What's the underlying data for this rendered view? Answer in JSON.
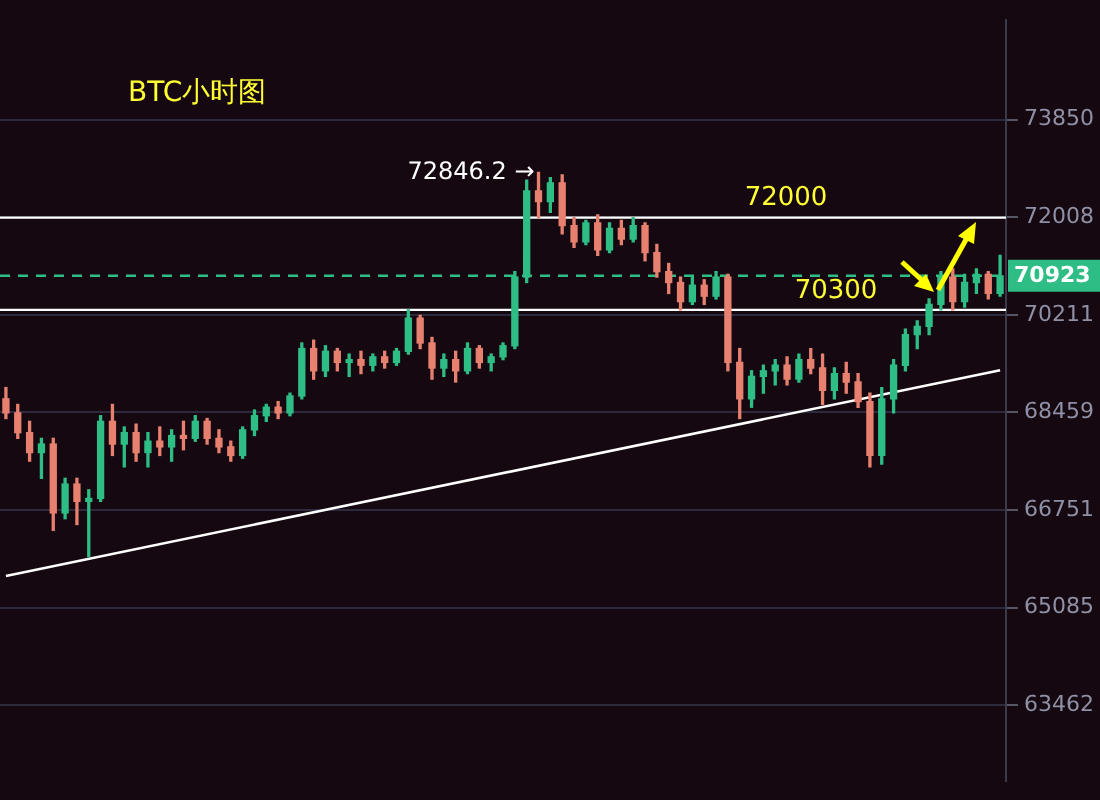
{
  "chart_data": {
    "type": "candlestick",
    "title": "BTC小时图",
    "categories": [
      null,
      null,
      null,
      null,
      null,
      null,
      null,
      null,
      null,
      null,
      null,
      null,
      null,
      null,
      null,
      null,
      null,
      null,
      null,
      null,
      null,
      null,
      null,
      null,
      null,
      null,
      null,
      null,
      null,
      null,
      null,
      null,
      null,
      null,
      null,
      null,
      null,
      null,
      null,
      null,
      null,
      null,
      null,
      null,
      null,
      null,
      null,
      null,
      null,
      null,
      null,
      null,
      null,
      null,
      null,
      null,
      null,
      null,
      null,
      null,
      null,
      null,
      null,
      null,
      null,
      null,
      null,
      null,
      null,
      null,
      null,
      null,
      null,
      null,
      null,
      null,
      null,
      null,
      null,
      null,
      null,
      null,
      null,
      null,
      null
    ],
    "ohlc": [
      [
        68700,
        68900,
        68350,
        68450
      ],
      [
        68450,
        68600,
        68000,
        68100
      ],
      [
        68100,
        68300,
        67600,
        67750
      ],
      [
        67750,
        68000,
        67300,
        67900
      ],
      [
        67900,
        68000,
        66400,
        66700
      ],
      [
        66700,
        67300,
        66600,
        67200
      ],
      [
        67200,
        67300,
        66500,
        66900
      ],
      [
        66900,
        67100,
        65950,
        66950
      ],
      [
        66950,
        68400,
        66900,
        68300
      ],
      [
        68300,
        68600,
        67700,
        67900
      ],
      [
        67900,
        68200,
        67500,
        68100
      ],
      [
        68100,
        68250,
        67600,
        67750
      ],
      [
        67750,
        68100,
        67500,
        67950
      ],
      [
        67950,
        68200,
        67700,
        67850
      ],
      [
        67850,
        68150,
        67600,
        68050
      ],
      [
        68050,
        68300,
        67800,
        68000
      ],
      [
        68000,
        68400,
        67950,
        68300
      ],
      [
        68300,
        68350,
        67900,
        68000
      ],
      [
        68000,
        68150,
        67750,
        67850
      ],
      [
        67850,
        67950,
        67600,
        67700
      ],
      [
        67700,
        68200,
        67650,
        68150
      ],
      [
        68150,
        68500,
        68050,
        68400
      ],
      [
        68400,
        68600,
        68300,
        68550
      ],
      [
        68550,
        68650,
        68350,
        68450
      ],
      [
        68450,
        68800,
        68400,
        68750
      ],
      [
        68750,
        69700,
        68700,
        69600
      ],
      [
        69600,
        69750,
        69050,
        69200
      ],
      [
        69200,
        69650,
        69100,
        69550
      ],
      [
        69550,
        69600,
        69200,
        69350
      ],
      [
        69350,
        69500,
        69100,
        69400
      ],
      [
        69400,
        69550,
        69150,
        69300
      ],
      [
        69300,
        69500,
        69200,
        69450
      ],
      [
        69450,
        69550,
        69250,
        69350
      ],
      [
        69350,
        69600,
        69300,
        69550
      ],
      [
        69550,
        70300,
        69500,
        70150
      ],
      [
        70150,
        70200,
        69600,
        69700
      ],
      [
        69700,
        69800,
        69050,
        69250
      ],
      [
        69250,
        69500,
        69100,
        69400
      ],
      [
        69400,
        69550,
        69000,
        69200
      ],
      [
        69200,
        69700,
        69150,
        69600
      ],
      [
        69600,
        69650,
        69250,
        69350
      ],
      [
        69350,
        69500,
        69200,
        69450
      ],
      [
        69450,
        69700,
        69400,
        69650
      ],
      [
        69650,
        71000,
        69600,
        70900
      ],
      [
        70900,
        72700,
        70800,
        72500
      ],
      [
        72500,
        72846.2,
        72000,
        72300
      ],
      [
        72300,
        72750,
        72100,
        72650
      ],
      [
        72650,
        72800,
        71700,
        71850
      ],
      [
        71850,
        72000,
        71450,
        71550
      ],
      [
        71550,
        71950,
        71500,
        71900
      ],
      [
        71900,
        72050,
        71300,
        71400
      ],
      [
        71400,
        71900,
        71350,
        71800
      ],
      [
        71800,
        71950,
        71500,
        71600
      ],
      [
        71600,
        72000,
        71550,
        71850
      ],
      [
        71850,
        71900,
        71200,
        71350
      ],
      [
        71350,
        71500,
        70900,
        71000
      ],
      [
        71000,
        71150,
        70600,
        70800
      ],
      [
        70800,
        70900,
        70300,
        70450
      ],
      [
        70450,
        70900,
        70400,
        70750
      ],
      [
        70750,
        70850,
        70400,
        70550
      ],
      [
        70550,
        71000,
        70500,
        70900
      ],
      [
        70900,
        70950,
        69200,
        69350
      ],
      [
        69350,
        69600,
        68350,
        68700
      ],
      [
        68700,
        69200,
        68550,
        69100
      ],
      [
        69100,
        69300,
        68800,
        69200
      ],
      [
        69200,
        69400,
        68950,
        69300
      ],
      [
        69300,
        69450,
        68950,
        69050
      ],
      [
        69050,
        69500,
        69000,
        69400
      ],
      [
        69400,
        69600,
        69150,
        69250
      ],
      [
        69250,
        69500,
        68600,
        68850
      ],
      [
        68850,
        69250,
        68700,
        69150
      ],
      [
        69150,
        69350,
        68800,
        69000
      ],
      [
        69000,
        69150,
        68550,
        68650
      ],
      [
        68650,
        68800,
        67500,
        67700
      ],
      [
        67700,
        68900,
        67550,
        68700
      ],
      [
        68700,
        69400,
        68450,
        69300
      ],
      [
        69300,
        69950,
        69200,
        69850
      ],
      [
        69850,
        70100,
        69600,
        70000
      ],
      [
        70000,
        70500,
        69850,
        70400
      ],
      [
        70400,
        71000,
        70300,
        70900
      ],
      [
        70900,
        71050,
        70300,
        70450
      ],
      [
        70450,
        70950,
        70350,
        70800
      ],
      [
        70800,
        71050,
        70600,
        70950
      ],
      [
        70950,
        71000,
        70500,
        70600
      ],
      [
        70600,
        71300,
        70550,
        70923
      ]
    ],
    "series": [
      {
        "type": "line",
        "color": "#ffffff",
        "values": [
          65620,
          null,
          null,
          null,
          null,
          null,
          null,
          null,
          null,
          null,
          null,
          null,
          null,
          null,
          null,
          null,
          null,
          null,
          null,
          null,
          null,
          null,
          null,
          null,
          null,
          null,
          null,
          null,
          null,
          null,
          null,
          null,
          null,
          null,
          null,
          null,
          null,
          null,
          null,
          null,
          null,
          null,
          null,
          null,
          null,
          null,
          null,
          null,
          null,
          null,
          null,
          null,
          null,
          null,
          null,
          null,
          null,
          null,
          null,
          null,
          null,
          null,
          null,
          null,
          null,
          null,
          null,
          null,
          null,
          null,
          null,
          null,
          null,
          null,
          null,
          null,
          null,
          null,
          null,
          null,
          null,
          null,
          null,
          null,
          69210
        ]
      }
    ],
    "log": "y",
    "ylim": [
      62230,
      75780
    ],
    "yticks": [
      63462,
      65085,
      66751,
      68459,
      70211,
      72008,
      73850
    ],
    "ref_lines": [
      {
        "axis": "y",
        "value": 72000,
        "label": "72000",
        "color": "#ffffff"
      },
      {
        "axis": "y",
        "value": 70300,
        "label": "70300",
        "color": "#ffffff"
      },
      {
        "axis": "y",
        "value": 70923,
        "label": "70923",
        "color": "#2ebd85",
        "line_style": "dashed"
      }
    ],
    "annotations": [
      "72846.2 →"
    ],
    "grid": "y",
    "legend": false,
    "tick_labels": "y"
  }
}
